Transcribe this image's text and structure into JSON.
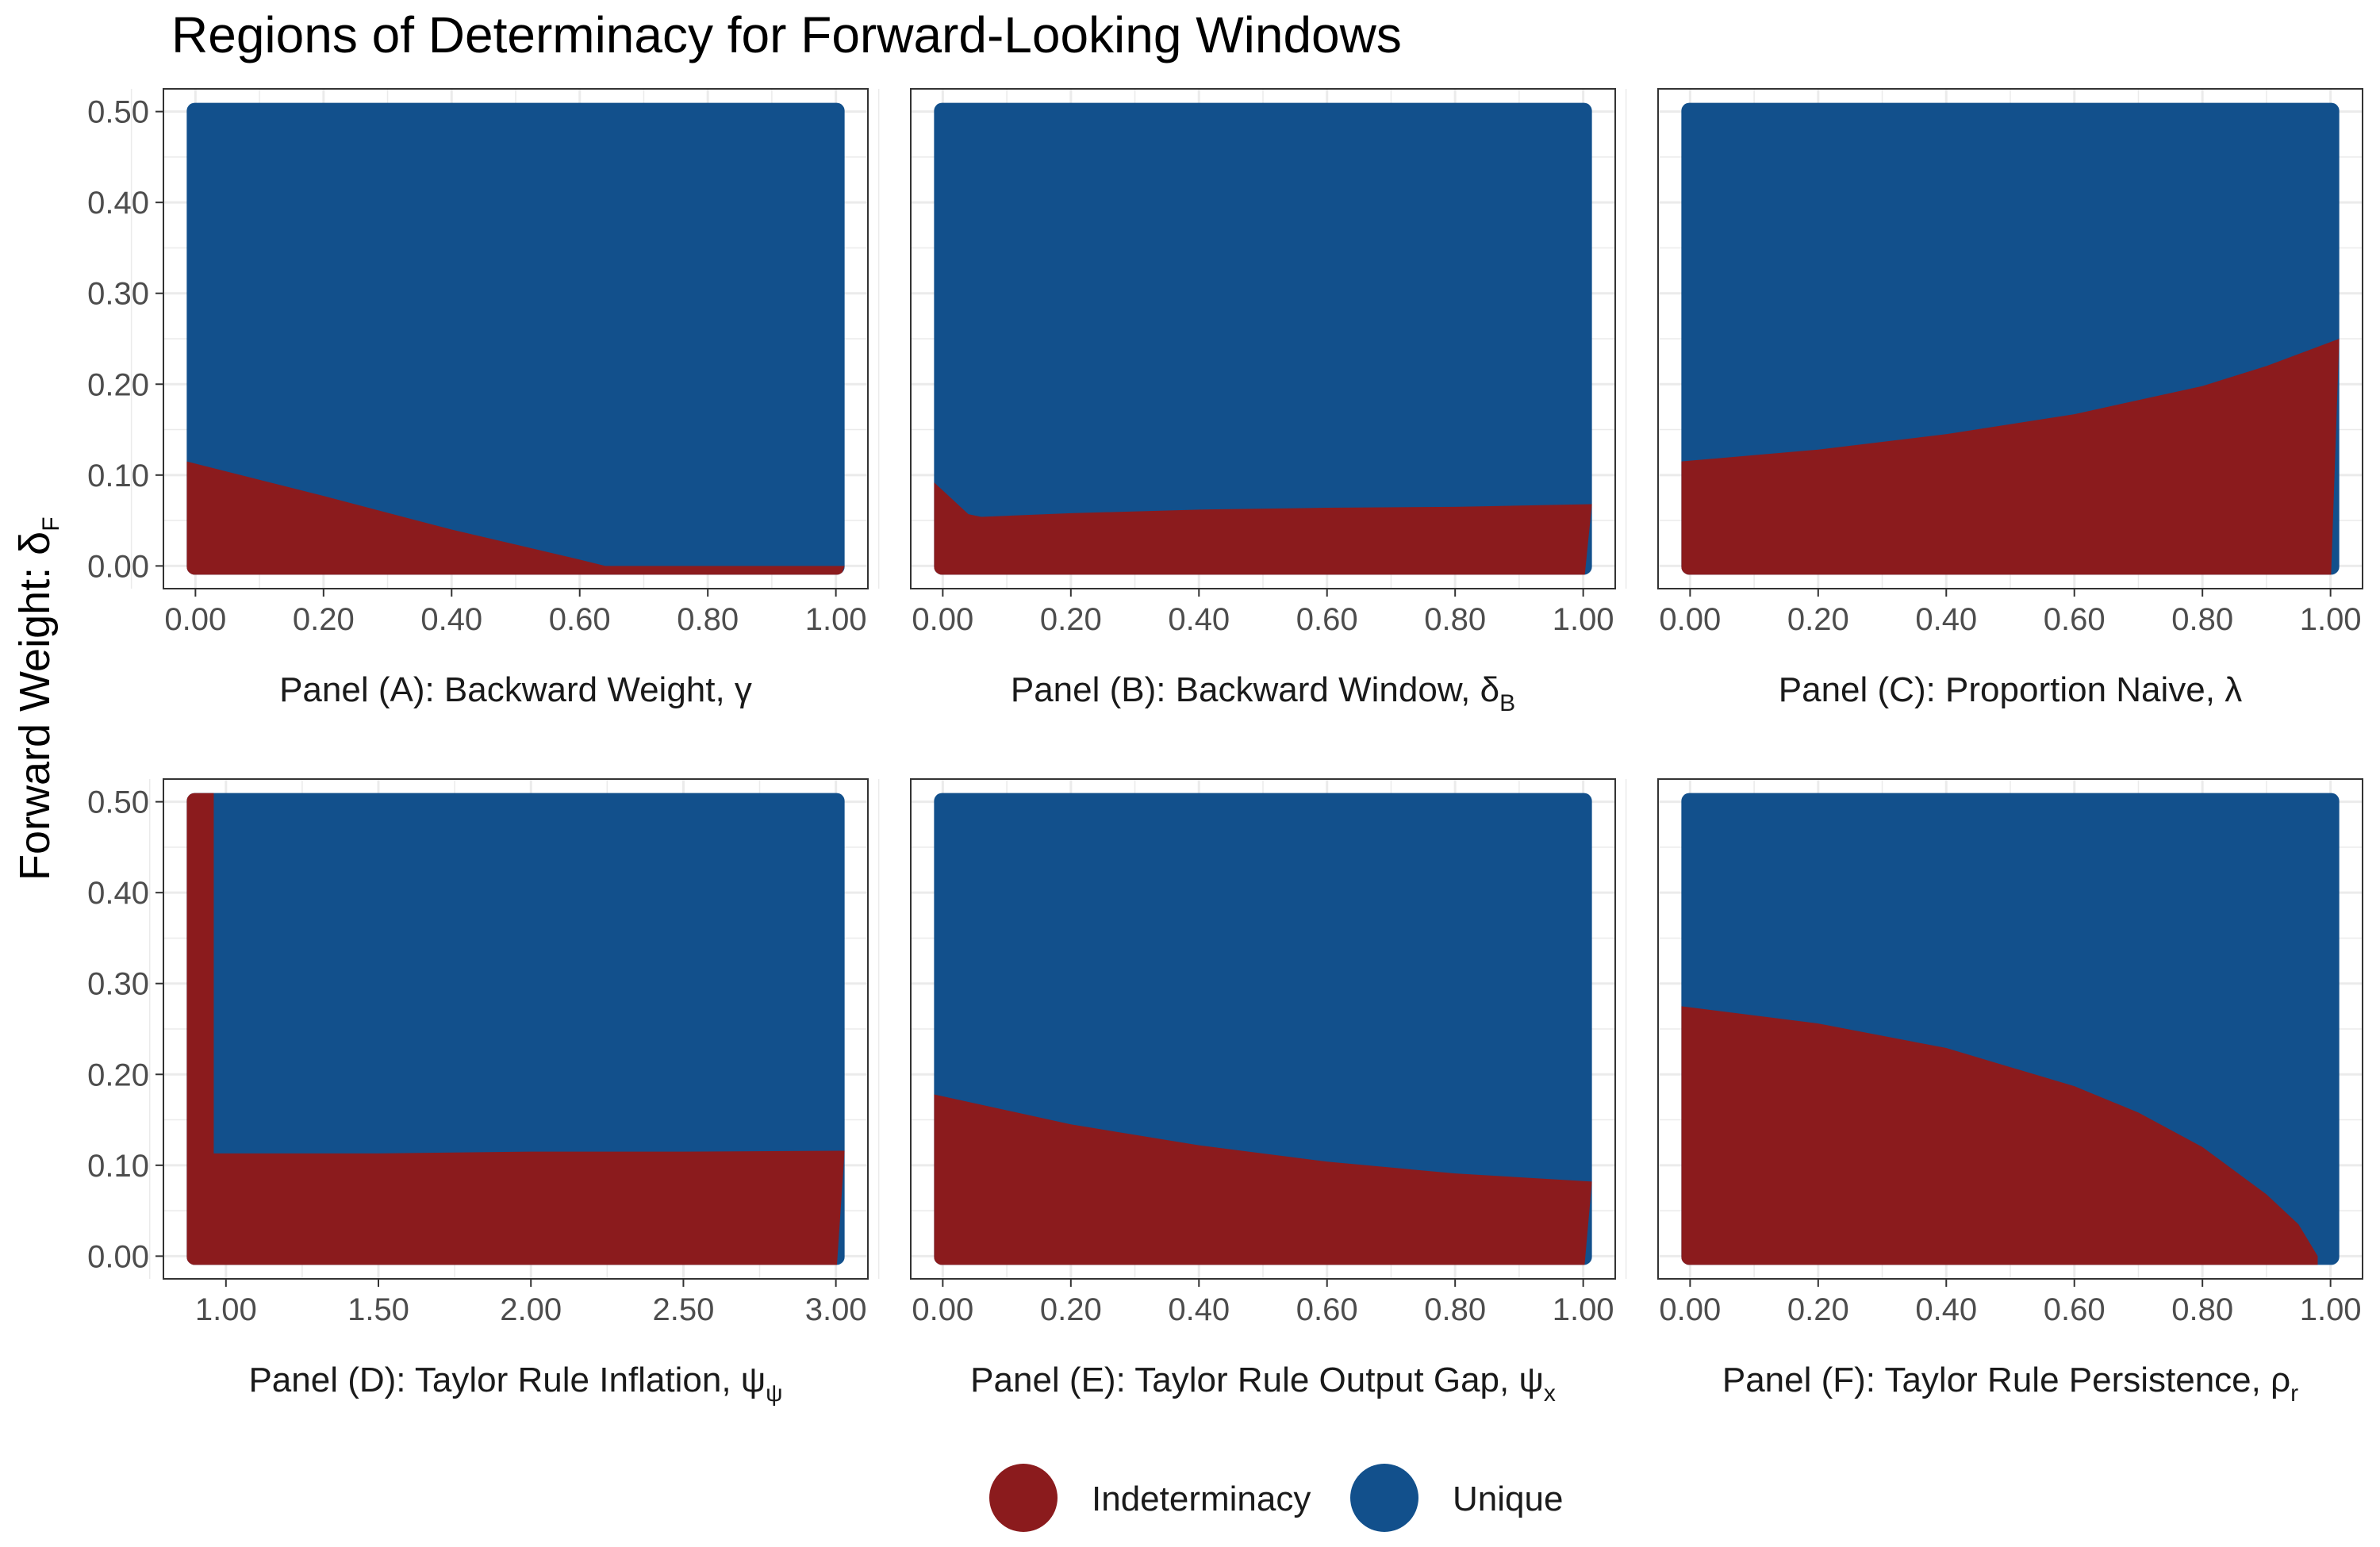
{
  "title": "Regions of Determinacy for Forward-Looking Windows",
  "y_axis_label": {
    "text": "Forward Weight: δ",
    "subscript": "F"
  },
  "legend": [
    {
      "label": "Indeterminacy",
      "color": "#8b1b1d"
    },
    {
      "label": "Unique",
      "color": "#12508c"
    }
  ],
  "colors": {
    "indeterminacy": "#8b1b1d",
    "unique": "#12508c",
    "grid": "#ebebeb",
    "frame": "#333333"
  },
  "chart_data": [
    {
      "type": "area",
      "panel_label": {
        "text": "Panel (A): Backward Weight, γ",
        "subscript": ""
      },
      "xlim": [
        0,
        1
      ],
      "ylim": [
        0,
        0.5
      ],
      "x_ticks": [
        "0.00",
        "0.20",
        "0.40",
        "0.60",
        "0.80",
        "1.00"
      ],
      "y_ticks": [
        "0.00",
        "0.10",
        "0.20",
        "0.30",
        "0.40",
        "0.50"
      ],
      "boundary": {
        "x": [
          0,
          0.2,
          0.4,
          0.6,
          0.64,
          1.0
        ],
        "y": [
          0.115,
          0.077,
          0.04,
          0.007,
          0,
          0
        ]
      }
    },
    {
      "type": "area",
      "panel_label": {
        "text": "Panel (B): Backward Window, δ",
        "subscript": "B"
      },
      "xlim": [
        0,
        1
      ],
      "ylim": [
        0,
        0.5
      ],
      "x_ticks": [
        "0.00",
        "0.20",
        "0.40",
        "0.60",
        "0.80",
        "1.00"
      ],
      "y_ticks": [
        "0.00",
        "0.10",
        "0.20",
        "0.30",
        "0.40",
        "0.50"
      ],
      "boundary": {
        "x": [
          0,
          0.02,
          0.04,
          0.06,
          0.2,
          0.4,
          0.6,
          0.8,
          1.0
        ],
        "y": [
          0.092,
          0.07,
          0.057,
          0.054,
          0.058,
          0.062,
          0.064,
          0.065,
          0.068
        ]
      }
    },
    {
      "type": "area",
      "panel_label": {
        "text": "Panel (C): Proportion Naive, λ",
        "subscript": ""
      },
      "xlim": [
        0,
        1
      ],
      "ylim": [
        0,
        0.5
      ],
      "x_ticks": [
        "0.00",
        "0.20",
        "0.40",
        "0.60",
        "0.80",
        "1.00"
      ],
      "y_ticks": [
        "0.00",
        "0.10",
        "0.20",
        "0.30",
        "0.40",
        "0.50"
      ],
      "boundary": {
        "x": [
          0,
          0.2,
          0.4,
          0.6,
          0.8,
          0.9,
          1.0
        ],
        "y": [
          0.115,
          0.128,
          0.145,
          0.167,
          0.198,
          0.22,
          0.25
        ]
      }
    },
    {
      "type": "area",
      "panel_label": {
        "text": "Panel (D): Taylor Rule Inflation, ψ",
        "subscript": "ψ"
      },
      "xlim": [
        0.9,
        3.0
      ],
      "ylim": [
        0,
        0.5
      ],
      "x_ticks": [
        "1.00",
        "1.50",
        "2.00",
        "2.50",
        "3.00"
      ],
      "y_ticks": [
        "0.00",
        "0.10",
        "0.20",
        "0.30",
        "0.40",
        "0.50"
      ],
      "boundary": {
        "x": [
          0.9,
          0.96,
          0.96,
          1.5,
          2.0,
          2.5,
          3.0
        ],
        "y": [
          0.5,
          0.5,
          0.113,
          0.113,
          0.115,
          0.115,
          0.116
        ]
      }
    },
    {
      "type": "area",
      "panel_label": {
        "text": "Panel (E): Taylor Rule Output Gap, ψ",
        "subscript": "x"
      },
      "xlim": [
        0,
        1
      ],
      "ylim": [
        0,
        0.5
      ],
      "x_ticks": [
        "0.00",
        "0.20",
        "0.40",
        "0.60",
        "0.80",
        "1.00"
      ],
      "y_ticks": [
        "0.00",
        "0.10",
        "0.20",
        "0.30",
        "0.40",
        "0.50"
      ],
      "boundary": {
        "x": [
          0,
          0.2,
          0.4,
          0.6,
          0.8,
          1.0
        ],
        "y": [
          0.178,
          0.145,
          0.122,
          0.104,
          0.091,
          0.082
        ]
      }
    },
    {
      "type": "area",
      "panel_label": {
        "text": "Panel (F): Taylor Rule Persistence, ρ",
        "subscript": "r"
      },
      "xlim": [
        0,
        1
      ],
      "ylim": [
        0,
        0.5
      ],
      "x_ticks": [
        "0.00",
        "0.20",
        "0.40",
        "0.60",
        "0.80",
        "1.00"
      ],
      "y_ticks": [
        "0.00",
        "0.10",
        "0.20",
        "0.30",
        "0.40",
        "0.50"
      ],
      "boundary": {
        "x": [
          0,
          0.2,
          0.4,
          0.6,
          0.7,
          0.8,
          0.9,
          0.95,
          0.98
        ],
        "y": [
          0.275,
          0.256,
          0.229,
          0.187,
          0.158,
          0.12,
          0.068,
          0.035,
          0.0
        ]
      }
    }
  ]
}
